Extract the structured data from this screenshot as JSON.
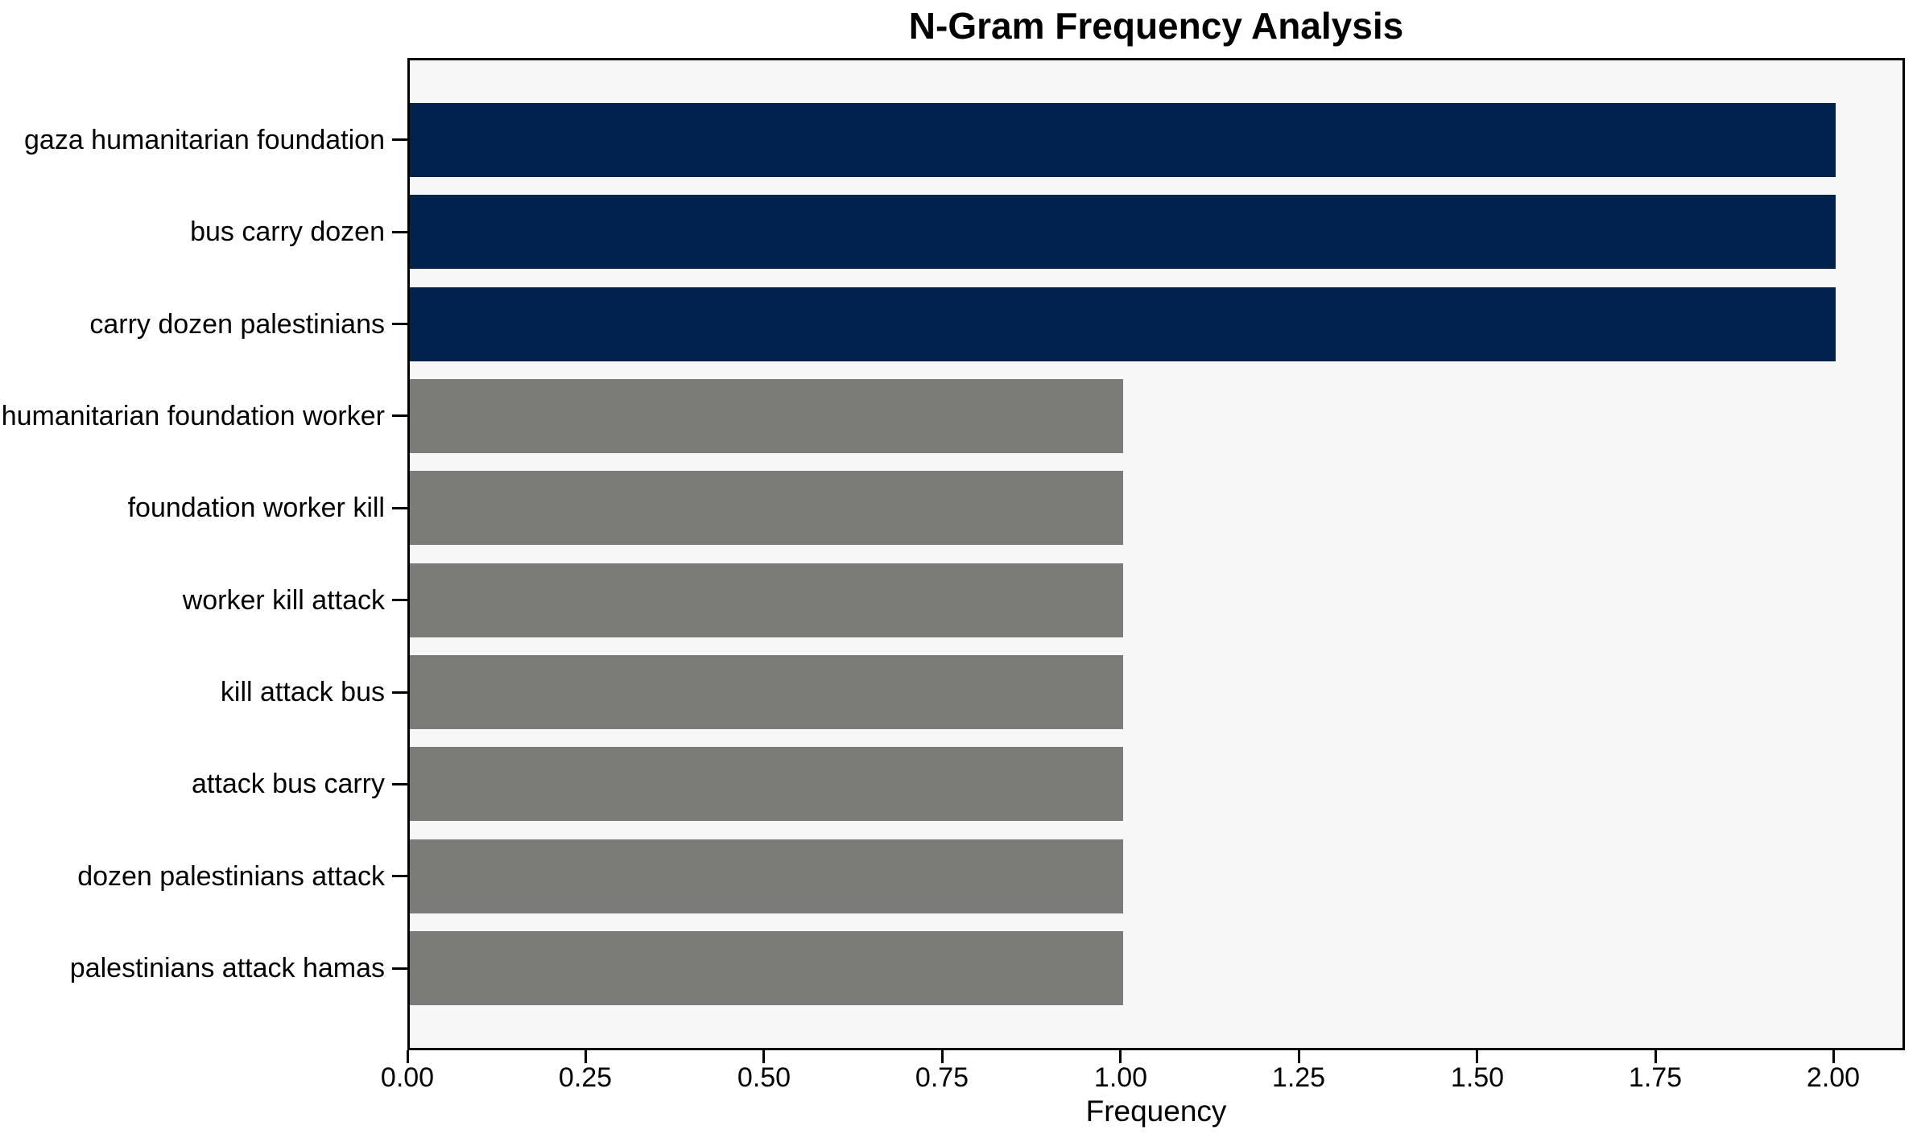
{
  "chart_data": {
    "type": "bar",
    "orientation": "horizontal",
    "title": "N-Gram Frequency Analysis",
    "xlabel": "Frequency",
    "ylabel": "",
    "categories": [
      "gaza humanitarian foundation",
      "bus carry dozen",
      "carry dozen palestinians",
      "humanitarian foundation worker",
      "foundation worker kill",
      "worker kill attack",
      "kill attack bus",
      "attack bus carry",
      "dozen palestinians attack",
      "palestinians attack hamas"
    ],
    "values": [
      2,
      2,
      2,
      1,
      1,
      1,
      1,
      1,
      1,
      1
    ],
    "bar_colors": [
      "#00224d",
      "#00224d",
      "#00224d",
      "#7b7b78",
      "#7b7b78",
      "#7b7b78",
      "#7b7b78",
      "#7b7b78",
      "#7b7b78",
      "#7b7b78"
    ],
    "xlim": [
      0,
      2.1
    ],
    "xticks": [
      0.0,
      0.25,
      0.5,
      0.75,
      1.0,
      1.25,
      1.5,
      1.75,
      2.0
    ],
    "xtick_labels": [
      "0.00",
      "0.25",
      "0.50",
      "0.75",
      "1.00",
      "1.25",
      "1.50",
      "1.75",
      "2.00"
    ],
    "grid": false,
    "legend": false,
    "colors": {
      "highlight_bar": "#00224d",
      "default_bar": "#7b7b78",
      "plot_background": "#f7f7f7",
      "figure_background": "#ffffff",
      "frame": "#000000",
      "text": "#000000"
    }
  }
}
